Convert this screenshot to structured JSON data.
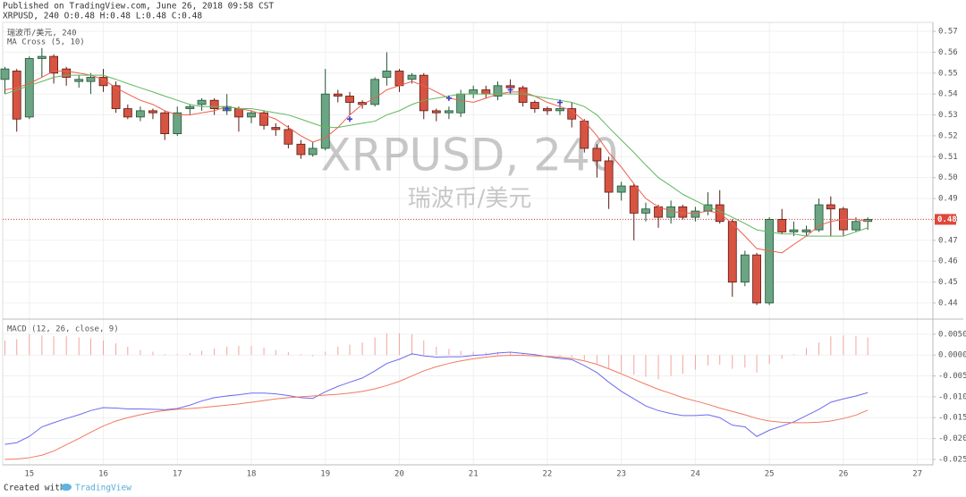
{
  "header": {
    "published": "Published on TradingView.com, June 26, 2018 09:58 CST",
    "ohlc": "XRPUSD, 240 O:0.48 H:0.48 L:0.48 C:0.48"
  },
  "chart_data": {
    "type": "candlestick",
    "legend_title": "瑞波币/美元, 240",
    "indicator": "MA Cross (5, 10)",
    "watermark": "XRPUSD, 240",
    "watermark_sub": "瑞波币/美元",
    "up_color": "#6ba583",
    "down_color": "#d75442",
    "x": [
      14.67,
      14.83,
      15,
      15.17,
      15.33,
      15.5,
      15.67,
      15.83,
      16,
      16.17,
      16.33,
      16.5,
      16.67,
      16.83,
      17,
      17.17,
      17.33,
      17.5,
      17.67,
      17.83,
      18,
      18.17,
      18.33,
      18.5,
      18.67,
      18.83,
      19,
      19.17,
      19.33,
      19.5,
      19.67,
      19.83,
      20,
      20.17,
      20.33,
      20.5,
      20.67,
      20.83,
      21,
      21.17,
      21.33,
      21.5,
      21.67,
      21.83,
      22,
      22.17,
      22.33,
      22.5,
      22.67,
      22.83,
      23,
      23.17,
      23.33,
      23.5,
      23.67,
      23.83,
      24,
      24.17,
      24.33,
      24.5,
      24.67,
      24.83,
      25,
      25.17,
      25.33,
      25.5,
      25.67,
      25.83,
      26,
      26.17,
      26.33
    ],
    "open": [
      0.547,
      0.551,
      0.529,
      0.557,
      0.558,
      0.552,
      0.546,
      0.546,
      0.548,
      0.544,
      0.533,
      0.529,
      0.532,
      0.531,
      0.521,
      0.533,
      0.535,
      0.537,
      0.532,
      0.533,
      0.529,
      0.531,
      0.524,
      0.523,
      0.516,
      0.511,
      0.514,
      0.54,
      0.539,
      0.536,
      0.535,
      0.548,
      0.551,
      0.547,
      0.549,
      0.532,
      0.531,
      0.531,
      0.54,
      0.542,
      0.539,
      0.544,
      0.543,
      0.536,
      0.533,
      0.532,
      0.533,
      0.527,
      0.514,
      0.508,
      0.493,
      0.496,
      0.483,
      0.486,
      0.481,
      0.486,
      0.481,
      0.484,
      0.487,
      0.479,
      0.45,
      0.463,
      0.44,
      0.48,
      0.474,
      0.474,
      0.475,
      0.487,
      0.485,
      0.475,
      0.479
    ],
    "high": [
      0.553,
      0.552,
      0.558,
      0.562,
      0.559,
      0.553,
      0.549,
      0.55,
      0.552,
      0.546,
      0.535,
      0.534,
      0.533,
      0.532,
      0.534,
      0.535,
      0.538,
      0.538,
      0.54,
      0.534,
      0.532,
      0.532,
      0.526,
      0.525,
      0.518,
      0.517,
      0.552,
      0.542,
      0.541,
      0.537,
      0.548,
      0.56,
      0.552,
      0.55,
      0.55,
      0.533,
      0.534,
      0.542,
      0.544,
      0.544,
      0.546,
      0.547,
      0.544,
      0.537,
      0.534,
      0.535,
      0.536,
      0.528,
      0.516,
      0.51,
      0.498,
      0.497,
      0.488,
      0.487,
      0.489,
      0.487,
      0.486,
      0.493,
      0.494,
      0.48,
      0.465,
      0.464,
      0.481,
      0.485,
      0.479,
      0.477,
      0.49,
      0.491,
      0.486,
      0.481,
      0.481
    ],
    "low": [
      0.54,
      0.522,
      0.528,
      0.548,
      0.545,
      0.544,
      0.543,
      0.54,
      0.541,
      0.531,
      0.528,
      0.527,
      0.528,
      0.518,
      0.52,
      0.53,
      0.532,
      0.53,
      0.53,
      0.522,
      0.526,
      0.523,
      0.52,
      0.514,
      0.509,
      0.51,
      0.513,
      0.536,
      0.53,
      0.533,
      0.534,
      0.544,
      0.541,
      0.545,
      0.528,
      0.527,
      0.528,
      0.529,
      0.538,
      0.538,
      0.537,
      0.54,
      0.534,
      0.531,
      0.53,
      0.53,
      0.524,
      0.512,
      0.5,
      0.485,
      0.489,
      0.47,
      0.479,
      0.476,
      0.478,
      0.48,
      0.479,
      0.482,
      0.478,
      0.443,
      0.448,
      0.439,
      0.439,
      0.473,
      0.472,
      0.472,
      0.474,
      0.472,
      0.472,
      0.474,
      0.475
    ],
    "close": [
      0.552,
      0.528,
      0.557,
      0.558,
      0.55,
      0.548,
      0.547,
      0.548,
      0.544,
      0.533,
      0.529,
      0.532,
      0.531,
      0.521,
      0.531,
      0.534,
      0.537,
      0.533,
      0.534,
      0.529,
      0.531,
      0.525,
      0.523,
      0.516,
      0.511,
      0.514,
      0.54,
      0.539,
      0.536,
      0.535,
      0.547,
      0.551,
      0.544,
      0.549,
      0.532,
      0.531,
      0.532,
      0.54,
      0.542,
      0.54,
      0.544,
      0.543,
      0.536,
      0.533,
      0.532,
      0.533,
      0.528,
      0.514,
      0.508,
      0.493,
      0.496,
      0.483,
      0.485,
      0.481,
      0.486,
      0.481,
      0.484,
      0.487,
      0.479,
      0.45,
      0.463,
      0.44,
      0.48,
      0.474,
      0.475,
      0.475,
      0.487,
      0.485,
      0.475,
      0.479,
      0.48
    ],
    "series": [
      {
        "name": "MA 5",
        "color": "#ef5e4e",
        "values": [
          0.542,
          0.543,
          0.545,
          0.548,
          0.551,
          0.551,
          0.55,
          0.549,
          0.547,
          0.543,
          0.54,
          0.537,
          0.535,
          0.532,
          0.53,
          0.53,
          0.531,
          0.532,
          0.534,
          0.533,
          0.532,
          0.53,
          0.528,
          0.524,
          0.52,
          0.517,
          0.519,
          0.524,
          0.53,
          0.535,
          0.538,
          0.542,
          0.544,
          0.546,
          0.544,
          0.541,
          0.538,
          0.537,
          0.536,
          0.538,
          0.54,
          0.541,
          0.541,
          0.539,
          0.536,
          0.534,
          0.532,
          0.527,
          0.52,
          0.512,
          0.505,
          0.497,
          0.49,
          0.486,
          0.484,
          0.483,
          0.483,
          0.484,
          0.483,
          0.478,
          0.472,
          0.466,
          0.465,
          0.464,
          0.468,
          0.472,
          0.477,
          0.479,
          0.48,
          0.48,
          0.479
        ]
      },
      {
        "name": "MA 10",
        "color": "#5fb85f",
        "values": [
          0.54,
          0.542,
          0.544,
          0.546,
          0.548,
          0.549,
          0.549,
          0.549,
          0.549,
          0.547,
          0.545,
          0.543,
          0.541,
          0.539,
          0.537,
          0.535,
          0.534,
          0.534,
          0.534,
          0.533,
          0.533,
          0.532,
          0.531,
          0.53,
          0.528,
          0.526,
          0.524,
          0.524,
          0.525,
          0.526,
          0.527,
          0.53,
          0.532,
          0.535,
          0.537,
          0.538,
          0.539,
          0.54,
          0.54,
          0.54,
          0.54,
          0.54,
          0.54,
          0.539,
          0.538,
          0.537,
          0.536,
          0.534,
          0.53,
          0.524,
          0.518,
          0.512,
          0.506,
          0.5,
          0.496,
          0.492,
          0.489,
          0.486,
          0.484,
          0.481,
          0.478,
          0.475,
          0.474,
          0.473,
          0.473,
          0.472,
          0.472,
          0.472,
          0.472,
          0.474,
          0.476
        ]
      }
    ],
    "cross_markers": {
      "color": "#3b3bd0",
      "x": [
        17.67,
        19.33,
        20.67,
        21.5,
        22.17
      ],
      "values": [
        0.533,
        0.528,
        0.538,
        0.542,
        0.536
      ]
    },
    "last_price": 0.48,
    "last_price_color": "#e0463a",
    "xlim": [
      14.64,
      27.21
    ],
    "xticks": [
      15,
      16,
      17,
      18,
      19,
      20,
      21,
      22,
      23,
      24,
      25,
      26,
      27
    ],
    "ylim": [
      0.4327,
      0.5743
    ],
    "yticks": [
      0.44,
      0.45,
      0.46,
      0.47,
      0.48,
      0.49,
      {
        "value": 0.5,
        "label": "0.50"
      },
      0.51,
      0.52,
      0.53,
      0.54,
      0.55,
      0.56,
      0.57
    ],
    "grid": true,
    "macd": {
      "label": "MACD (12, 26, close, 9)",
      "ylim": [
        -0.0263,
        0.0084
      ],
      "yticks": [
        {
          "value": 0.005,
          "label": "0.0050"
        },
        {
          "value": 0,
          "label": "0.0000"
        },
        {
          "value": -0.005,
          "label": "-0.0050"
        },
        {
          "value": -0.01,
          "label": "-0.0100"
        },
        {
          "value": -0.015,
          "label": "-0.0150"
        },
        {
          "value": -0.02,
          "label": "-0.0200"
        },
        {
          "value": -0.025,
          "label": "-0.0250"
        }
      ],
      "histogram": {
        "color": "#f3a59c",
        "values": [
          0.0035,
          0.0038,
          0.005,
          0.0047,
          0.0045,
          0.0045,
          0.0042,
          0.004,
          0.0035,
          0.0028,
          0.002,
          0.0012,
          0.0008,
          0.0002,
          0.0002,
          0.0005,
          0.001,
          0.0016,
          0.002,
          0.0022,
          0.0022,
          0.0018,
          0.0012,
          0.0007,
          0.0002,
          -0.0003,
          0.0008,
          0.002,
          0.0025,
          0.003,
          0.0042,
          0.0052,
          0.0052,
          0.005,
          0.0035,
          0.002,
          0.0015,
          0.001,
          0.0008,
          0.0006,
          0.0007,
          0.0008,
          0.0005,
          0.0003,
          0.0001,
          -0.0003,
          -0.0005,
          -0.0012,
          -0.002,
          -0.0032,
          -0.0042,
          -0.0047,
          -0.0052,
          -0.0058,
          -0.005,
          -0.0045,
          -0.0035,
          -0.0025,
          -0.0023,
          -0.0033,
          -0.003,
          -0.0042,
          -0.0022,
          -0.0009,
          0.0002,
          0.0017,
          0.003,
          0.0045,
          0.0047,
          0.0046,
          0.0042
        ]
      },
      "series": [
        {
          "name": "MACD",
          "color": "#6b6bf0",
          "values": [
            -0.0214,
            -0.021,
            -0.0195,
            -0.0172,
            -0.0162,
            -0.0152,
            -0.0143,
            -0.0133,
            -0.0126,
            -0.0127,
            -0.0129,
            -0.0129,
            -0.013,
            -0.0131,
            -0.0128,
            -0.012,
            -0.011,
            -0.0102,
            -0.0098,
            -0.0095,
            -0.0091,
            -0.0091,
            -0.0093,
            -0.0097,
            -0.0102,
            -0.0104,
            -0.0088,
            -0.0075,
            -0.0065,
            -0.0055,
            -0.0038,
            -0.002,
            -0.001,
            0.0003,
            -0.0002,
            -0.0005,
            -0.0004,
            -0.0004,
            -0.0001,
            0.0001,
            0.0005,
            0.0007,
            0.0004,
            0.0001,
            -0.0004,
            -0.0008,
            -0.0011,
            -0.0025,
            -0.0042,
            -0.0065,
            -0.0087,
            -0.0105,
            -0.0122,
            -0.0133,
            -0.014,
            -0.0145,
            -0.0145,
            -0.0143,
            -0.015,
            -0.0168,
            -0.0172,
            -0.0195,
            -0.018,
            -0.017,
            -0.016,
            -0.0145,
            -0.013,
            -0.0113,
            -0.0105,
            -0.0098,
            -0.009
          ]
        },
        {
          "name": "Signal",
          "color": "#f07a62",
          "values": [
            -0.025,
            -0.0249,
            -0.0246,
            -0.024,
            -0.023,
            -0.0215,
            -0.02,
            -0.0185,
            -0.017,
            -0.0158,
            -0.015,
            -0.0143,
            -0.0137,
            -0.0133,
            -0.013,
            -0.0128,
            -0.0126,
            -0.0123,
            -0.012,
            -0.0117,
            -0.0113,
            -0.0109,
            -0.0105,
            -0.0102,
            -0.01,
            -0.0098,
            -0.0096,
            -0.0094,
            -0.0091,
            -0.0087,
            -0.0081,
            -0.0073,
            -0.0063,
            -0.005,
            -0.0038,
            -0.0028,
            -0.002,
            -0.0014,
            -0.0009,
            -0.0005,
            -0.0002,
            -0.0001,
            -0.0001,
            -0.0002,
            -0.0003,
            -0.0005,
            -0.0008,
            -0.0014,
            -0.0022,
            -0.0033,
            -0.0045,
            -0.0058,
            -0.007,
            -0.0082,
            -0.0092,
            -0.0102,
            -0.011,
            -0.0118,
            -0.0127,
            -0.0135,
            -0.0143,
            -0.0152,
            -0.0158,
            -0.0161,
            -0.0162,
            -0.0162,
            -0.0161,
            -0.0158,
            -0.0152,
            -0.0144,
            -0.0132
          ]
        }
      ]
    }
  },
  "footer": {
    "created": "Created with",
    "brand": "TradingView"
  }
}
